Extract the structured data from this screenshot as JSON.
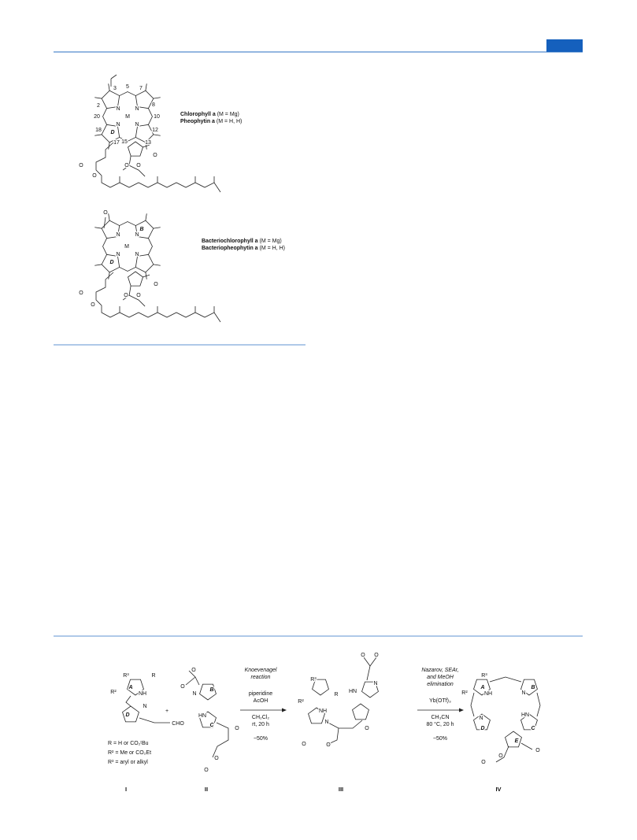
{
  "figure1": {
    "chlorophyll": {
      "atoms": [
        "3",
        "5",
        "7",
        "2",
        "8",
        "N",
        "N",
        "M",
        "N",
        "N",
        "20",
        "10",
        "18",
        "12",
        "D",
        "17",
        "15",
        "13",
        "O",
        "O",
        "O",
        "O",
        "O"
      ],
      "names": [
        {
          "name": "Chlorophyll a",
          "metal": "(M = Mg)"
        },
        {
          "name": "Pheophytin a",
          "metal": "(M = H, H)"
        }
      ]
    },
    "bacteriochlorophyll": {
      "atoms": [
        "O",
        "B",
        "N",
        "N",
        "M",
        "N",
        "N",
        "D",
        "O",
        "O",
        "O",
        "O",
        "O"
      ],
      "names": [
        {
          "name": "Bacteriochlorophyll a",
          "metal": "(M = Mg)"
        },
        {
          "name": "Bacteriopheophytin a",
          "metal": "(M = H, H)"
        }
      ]
    }
  },
  "scheme": {
    "compounds": [
      {
        "id": "I",
        "atoms": [
          "R³",
          "R",
          "R²",
          "A",
          "NH",
          "N",
          "D",
          "CHO"
        ],
        "definitions": [
          "R = H or CO₂ᵗBu",
          "R² = Me or CO₂Et",
          "R³ = aryl or alkyl"
        ]
      },
      {
        "id": "II",
        "atoms": [
          "O",
          "O",
          "N",
          "B",
          "HN",
          "C",
          "O",
          "O",
          "O"
        ]
      },
      {
        "id": "III",
        "atoms": [
          "R³",
          "R",
          "R²",
          "NH",
          "N",
          "O",
          "O",
          "O",
          "O",
          "O",
          "HN",
          "N"
        ]
      },
      {
        "id": "IV",
        "atoms": [
          "R³",
          "R²",
          "A",
          "NH",
          "N",
          "B",
          "D",
          "N",
          "HN",
          "C",
          "E",
          "O",
          "O",
          "O"
        ]
      }
    ],
    "plus": "+",
    "steps": [
      {
        "conditions": [
          "Knoevenagel",
          "reaction",
          "piperidine",
          "AcOH",
          "CH₂Cl₂",
          "rt, 20 h",
          "~50%"
        ]
      },
      {
        "conditions": [
          "Nazarov, SEAr,",
          "and MeOH",
          "elimination",
          "Yb(OTf)₃",
          "CH₃CN",
          "80 °C, 20 h",
          "~50%"
        ]
      }
    ]
  }
}
